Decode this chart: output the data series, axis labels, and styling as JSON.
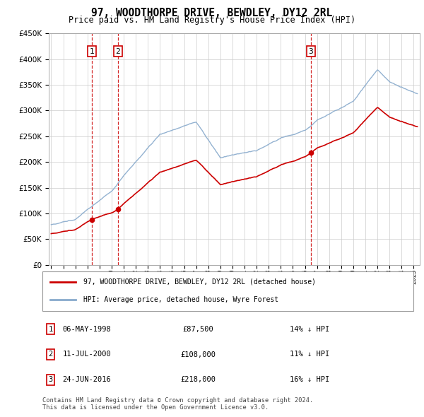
{
  "title": "97, WOODTHORPE DRIVE, BEWDLEY, DY12 2RL",
  "subtitle": "Price paid vs. HM Land Registry's House Price Index (HPI)",
  "legend_property": "97, WOODTHORPE DRIVE, BEWDLEY, DY12 2RL (detached house)",
  "legend_hpi": "HPI: Average price, detached house, Wyre Forest",
  "copyright": "Contains HM Land Registry data © Crown copyright and database right 2024.\nThis data is licensed under the Open Government Licence v3.0.",
  "sales": [
    {
      "num": 1,
      "date": "06-MAY-1998",
      "price": 87500,
      "year": 1998.35,
      "hpi_pct": "14% ↓ HPI"
    },
    {
      "num": 2,
      "date": "11-JUL-2000",
      "price": 108000,
      "year": 2000.53,
      "hpi_pct": "11% ↓ HPI"
    },
    {
      "num": 3,
      "date": "24-JUN-2016",
      "price": 218000,
      "year": 2016.48,
      "hpi_pct": "16% ↓ HPI"
    }
  ],
  "ylim": [
    0,
    450000
  ],
  "xlim": [
    1994.8,
    2025.5
  ],
  "yticks": [
    0,
    50000,
    100000,
    150000,
    200000,
    250000,
    300000,
    350000,
    400000,
    450000
  ],
  "xticks": [
    1995,
    1996,
    1997,
    1998,
    1999,
    2000,
    2001,
    2002,
    2003,
    2004,
    2005,
    2006,
    2007,
    2008,
    2009,
    2010,
    2011,
    2012,
    2013,
    2014,
    2015,
    2016,
    2017,
    2018,
    2019,
    2020,
    2021,
    2022,
    2023,
    2024,
    2025
  ],
  "property_color": "#cc0000",
  "hpi_color": "#88aacc",
  "marker_box_color": "#cc0000",
  "dashed_line_color": "#cc0000",
  "background_color": "#ffffff",
  "grid_color": "#cccccc",
  "sale_marker_y": 415000
}
